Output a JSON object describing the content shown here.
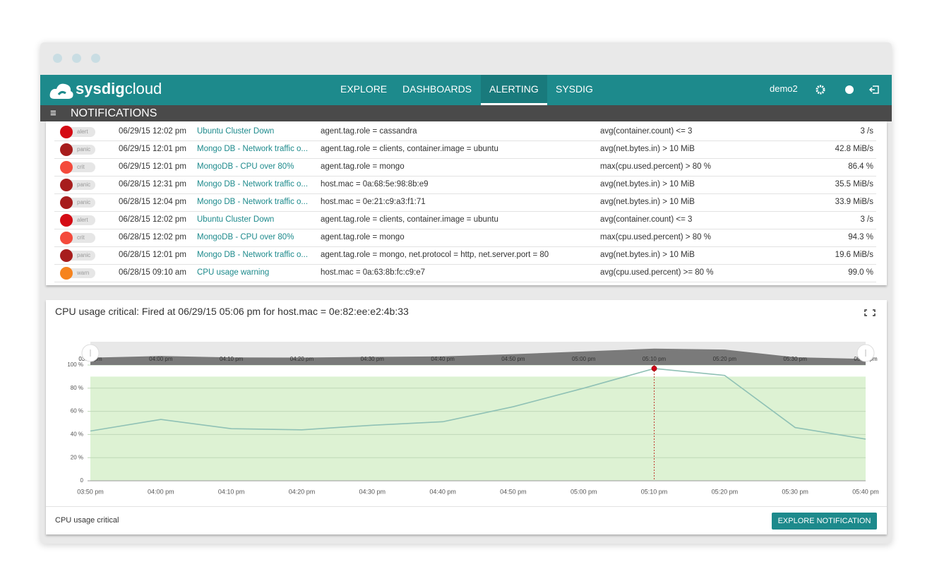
{
  "nav": {
    "logo_bold": "sysdig",
    "logo_light": "cloud",
    "menu": [
      "EXPLORE",
      "DASHBOARDS",
      "ALERTING",
      "SYSDIG"
    ],
    "user": "demo2"
  },
  "notifications": {
    "title": "NOTIFICATIONS",
    "rows": [
      [
        "alert",
        "06/29/15 12:02 pm",
        "Ubuntu Cluster Down",
        "agent.tag.role = cassandra",
        "avg(container.count) <= 3",
        "3 /s"
      ],
      [
        "panic",
        "06/29/15 12:01 pm",
        "Mongo DB - Network traffic o...",
        "agent.tag.role = clients, container.image = ubuntu",
        "avg(net.bytes.in) > 10 MiB",
        "42.8 MiB/s"
      ],
      [
        "crit",
        "06/29/15 12:01 pm",
        "MongoDB - CPU over 80%",
        "agent.tag.role = mongo",
        "max(cpu.used.percent) > 80 %",
        "86.4 %"
      ],
      [
        "panic",
        "06/28/15 12:31 pm",
        "Mongo DB - Network traffic o...",
        "host.mac = 0a:68:5e:98:8b:e9",
        "avg(net.bytes.in) > 10 MiB",
        "35.5 MiB/s"
      ],
      [
        "panic",
        "06/28/15 12:04 pm",
        "Mongo DB - Network traffic o...",
        "host.mac = 0e:21:c9:a3:f1:71",
        "avg(net.bytes.in) > 10 MiB",
        "33.9 MiB/s"
      ],
      [
        "alert",
        "06/28/15 12:02 pm",
        "Ubuntu Cluster Down",
        "agent.tag.role = clients, container.image = ubuntu",
        "avg(container.count) <= 3",
        "3 /s"
      ],
      [
        "crit",
        "06/28/15 12:02 pm",
        "MongoDB - CPU over 80%",
        "agent.tag.role = mongo",
        "max(cpu.used.percent) > 80 %",
        "94.3 %"
      ],
      [
        "panic",
        "06/28/15 12:01 pm",
        "Mongo DB - Network traffic o...",
        "agent.tag.role = mongo, net.protocol = http, net.server.port = 80",
        "avg(net.bytes.in) > 10 MiB",
        "19.6 MiB/s"
      ],
      [
        "warn",
        "06/28/15 09:10 am",
        "CPU usage warning",
        "host.mac = 0a:63:8b:fc:c9:e7",
        "avg(cpu.used.percent) >= 80 %",
        "99.0 %"
      ]
    ]
  },
  "detail": {
    "title": "CPU usage critical: Fired at 06/29/15 05:06 pm for host.mac = 0e:82:ee:e2:4b:33",
    "button": "EXPLORE NOTIFICATION"
  },
  "chart_data": {
    "type": "line",
    "categories": [
      "03:50 pm",
      "04:00 pm",
      "04:10 pm",
      "04:20 pm",
      "04:30 pm",
      "04:40 pm",
      "04:50 pm",
      "05:00 pm",
      "05:10 pm",
      "05:20 pm",
      "05:30 pm",
      "05:40 pm"
    ],
    "series": [
      {
        "name": "CPU usage critical",
        "color": "#8fc1b5",
        "values": [
          43,
          53,
          45,
          44,
          48,
          51,
          64,
          80,
          97,
          91,
          46,
          36
        ]
      }
    ],
    "threshold": 90,
    "threshold_color": "#ddf2d3",
    "highlight_index": 8,
    "ylim": [
      0,
      100
    ],
    "yticks": [
      0,
      {
        "value": 20,
        "label": "20 %"
      },
      {
        "value": 40,
        "label": "40 %"
      },
      {
        "value": 60,
        "label": "60 %"
      },
      {
        "value": 80,
        "label": "80 %"
      },
      {
        "value": 100,
        "label": "100 %"
      }
    ],
    "grid": true
  }
}
